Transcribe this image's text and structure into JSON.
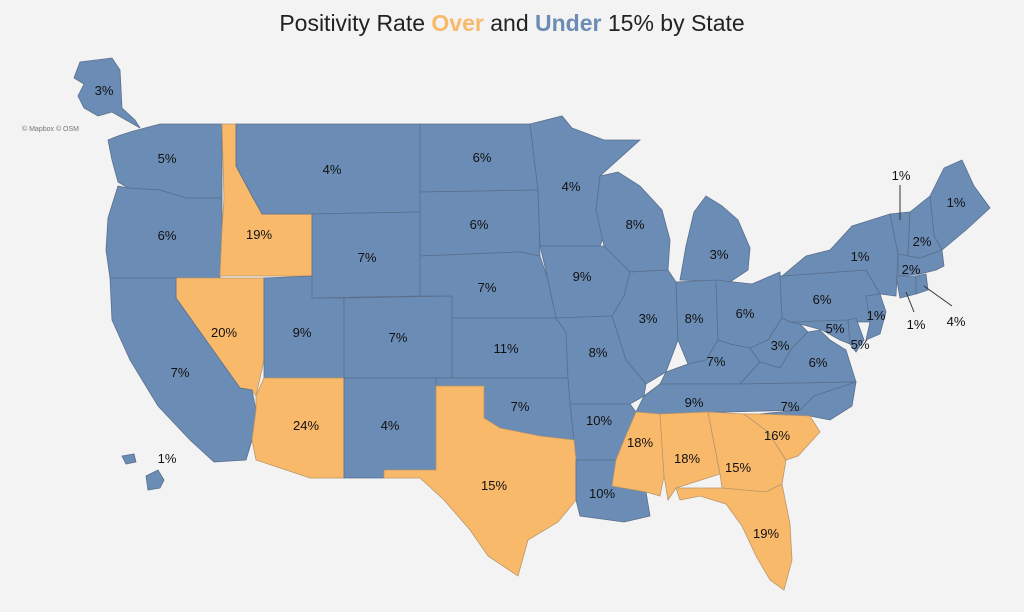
{
  "title": {
    "prefix": "Positivity Rate ",
    "over": "Over",
    "middle": " and ",
    "under": "Under",
    "suffix": " 15% by State"
  },
  "attribution": "© Mapbox © OSM",
  "colors": {
    "over": "#f9b96b",
    "under": "#6b8cb5"
  },
  "states": [
    {
      "id": "AK",
      "value": "3%",
      "category": "under"
    },
    {
      "id": "WA",
      "value": "5%",
      "category": "under"
    },
    {
      "id": "OR",
      "value": "6%",
      "category": "under"
    },
    {
      "id": "ID",
      "value": "19%",
      "category": "over"
    },
    {
      "id": "MT",
      "value": "4%",
      "category": "under"
    },
    {
      "id": "WY",
      "value": "7%",
      "category": "under"
    },
    {
      "id": "ND",
      "value": "6%",
      "category": "under"
    },
    {
      "id": "SD",
      "value": "6%",
      "category": "under"
    },
    {
      "id": "MN",
      "value": "4%",
      "category": "under"
    },
    {
      "id": "WI",
      "value": "8%",
      "category": "under"
    },
    {
      "id": "MI",
      "value": "3%",
      "category": "under"
    },
    {
      "id": "NV",
      "value": "20%",
      "category": "over"
    },
    {
      "id": "UT",
      "value": "9%",
      "category": "under"
    },
    {
      "id": "CO",
      "value": "7%",
      "category": "under"
    },
    {
      "id": "NE",
      "value": "7%",
      "category": "under"
    },
    {
      "id": "IA",
      "value": "9%",
      "category": "under"
    },
    {
      "id": "IL",
      "value": "3%",
      "category": "under"
    },
    {
      "id": "IN",
      "value": "8%",
      "category": "under"
    },
    {
      "id": "OH",
      "value": "6%",
      "category": "under"
    },
    {
      "id": "PA",
      "value": "6%",
      "category": "under"
    },
    {
      "id": "NY",
      "value": "1%",
      "category": "under"
    },
    {
      "id": "CA",
      "value": "7%",
      "category": "under"
    },
    {
      "id": "KS",
      "value": "11%",
      "category": "under"
    },
    {
      "id": "MO",
      "value": "8%",
      "category": "under"
    },
    {
      "id": "KY",
      "value": "7%",
      "category": "under"
    },
    {
      "id": "WV",
      "value": "3%",
      "category": "under"
    },
    {
      "id": "VA",
      "value": "6%",
      "category": "under"
    },
    {
      "id": "MD",
      "value": "5%",
      "category": "under"
    },
    {
      "id": "DE",
      "value": "5%",
      "category": "under"
    },
    {
      "id": "NJ",
      "value": "1%",
      "category": "under"
    },
    {
      "id": "AZ",
      "value": "24%",
      "category": "over"
    },
    {
      "id": "NM",
      "value": "4%",
      "category": "under"
    },
    {
      "id": "OK",
      "value": "7%",
      "category": "under"
    },
    {
      "id": "AR",
      "value": "10%",
      "category": "under"
    },
    {
      "id": "TN",
      "value": "9%",
      "category": "under"
    },
    {
      "id": "NC",
      "value": "7%",
      "category": "under"
    },
    {
      "id": "TX",
      "value": "15%",
      "category": "over"
    },
    {
      "id": "LA",
      "value": "10%",
      "category": "under"
    },
    {
      "id": "MS",
      "value": "18%",
      "category": "over"
    },
    {
      "id": "AL",
      "value": "18%",
      "category": "over"
    },
    {
      "id": "GA",
      "value": "15%",
      "category": "over"
    },
    {
      "id": "SC",
      "value": "16%",
      "category": "over"
    },
    {
      "id": "FL",
      "value": "19%",
      "category": "over"
    },
    {
      "id": "HI",
      "value": "1%",
      "category": "under"
    },
    {
      "id": "ME",
      "value": "1%",
      "category": "under"
    },
    {
      "id": "VT",
      "value": "1%",
      "category": "under"
    },
    {
      "id": "NH",
      "value": "2%",
      "category": "under"
    },
    {
      "id": "MA",
      "value": "2%",
      "category": "under"
    },
    {
      "id": "CT",
      "value": "1%",
      "category": "under"
    },
    {
      "id": "RI",
      "value": "4%",
      "category": "under"
    }
  ]
}
